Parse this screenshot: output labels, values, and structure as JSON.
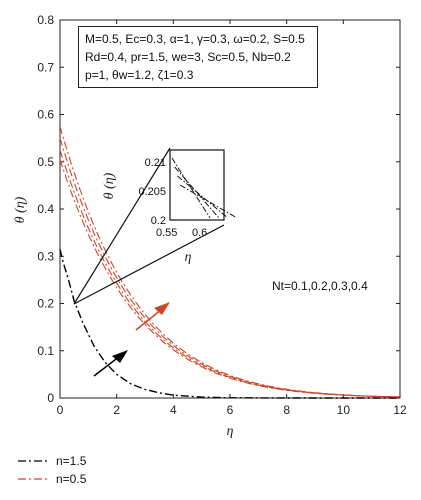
{
  "chart_data": {
    "type": "line",
    "xlabel": "η",
    "ylabel": "θ (η)",
    "xlim": [
      0,
      12
    ],
    "ylim": [
      0,
      0.8
    ],
    "xticks": [
      "0",
      "2",
      "4",
      "6",
      "8",
      "10",
      "12"
    ],
    "yticks": [
      "0",
      "0.1",
      "0.2",
      "0.3",
      "0.4",
      "0.5",
      "0.6",
      "0.7",
      "0.8"
    ],
    "params": [
      "M=0.5, Ec=0.3, α=1, γ=0.3, ω=0.2, S=0.5",
      "Rd=0.4, pr=1.5, we=3, Sc=0.5, Nb=0.2",
      "p=1, θw=1.2, ζ1=0.3"
    ],
    "annotation": "Nt=0.1,0.2,0.3,0.4",
    "legend": [
      {
        "label": "n=1.5",
        "color": "#000000",
        "dash": "dashdot"
      },
      {
        "label": "n=0.5",
        "color": "#d0452a",
        "dash": "dashdot"
      }
    ],
    "series_black": {
      "name": "n=1.5",
      "x": [
        0,
        0.1,
        0.3,
        0.5,
        0.8,
        1.2,
        1.6,
        2,
        2.5,
        3,
        3.5,
        4,
        5,
        6,
        8,
        12
      ],
      "y": [
        0.315,
        0.29,
        0.25,
        0.205,
        0.16,
        0.11,
        0.075,
        0.05,
        0.03,
        0.018,
        0.011,
        0.006,
        0.002,
        0.0005,
        0,
        0
      ]
    },
    "series_red": [
      {
        "name": "Nt=0.1",
        "y0": 0.505,
        "k": 0.37
      },
      {
        "name": "Nt=0.2",
        "y0": 0.525,
        "k": 0.37
      },
      {
        "name": "Nt=0.3",
        "y0": 0.55,
        "k": 0.37
      },
      {
        "name": "Nt=0.4",
        "y0": 0.575,
        "k": 0.37
      }
    ],
    "inset": {
      "xlabel": "η",
      "ylabel": "θ (η)",
      "xticks": [
        "0.55",
        "0.6"
      ],
      "yticks": [
        "0.2",
        "0.205",
        "0.21"
      ]
    }
  }
}
